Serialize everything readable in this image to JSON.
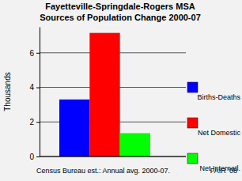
{
  "chart_data": {
    "type": "bar",
    "title": "Fayetteville-Springdale-Rogers MSA",
    "subtitle": "Sources of Population Change 2000-07",
    "y_label": "Thousands",
    "categories": [
      "Births-Deaths",
      "Net Domestic",
      "Net Internatl."
    ],
    "values": [
      3.3,
      7.15,
      1.35
    ],
    "colors": [
      "#0000ff",
      "#ff0000",
      "#00ff00"
    ],
    "ylim": [
      0,
      7.5
    ],
    "yticks": [
      0,
      2,
      4,
      6
    ],
    "grid": true,
    "legend": "right",
    "tick_labels": "y",
    "annotations": [
      "Census Bureau est.: Annual avg. 2000-07.",
      "FAIR '08"
    ]
  }
}
